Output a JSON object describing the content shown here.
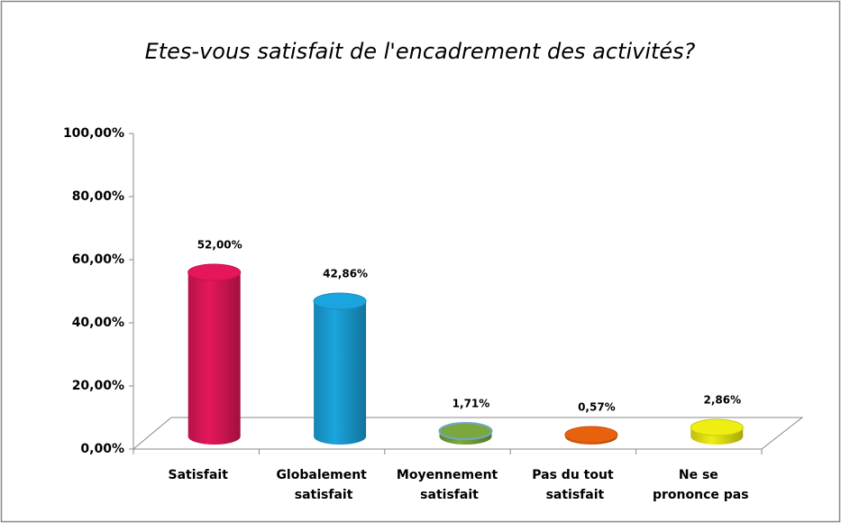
{
  "chart_data": {
    "type": "bar3d",
    "title": "Etes-vous satisfait de l'encadrement des activités?",
    "categories": [
      "Satisfait",
      "Globalement satisfait",
      "Moyennement satisfait",
      "Pas du tout satisfait",
      "Ne se prononce pas"
    ],
    "values": [
      52,
      42.86,
      1.71,
      0.57,
      2.86
    ],
    "value_labels": [
      "52,00%",
      "42,86%",
      "1,71%",
      "0,57%",
      "2,86%"
    ],
    "colors": [
      "#e5175a",
      "#1ba5de",
      "#7aa83c",
      "#e8620e",
      "#eeee12"
    ],
    "ylim": [
      0,
      100
    ],
    "yticks": [
      {
        "value": 0,
        "label": "0,00%"
      },
      {
        "value": 20,
        "label": "20,00%"
      },
      {
        "value": 40,
        "label": "40,00%"
      },
      {
        "value": 60,
        "label": "60,00%"
      },
      {
        "value": 80,
        "label": "80,00%"
      },
      {
        "value": 100,
        "label": "100,00%"
      }
    ],
    "grid": false
  }
}
